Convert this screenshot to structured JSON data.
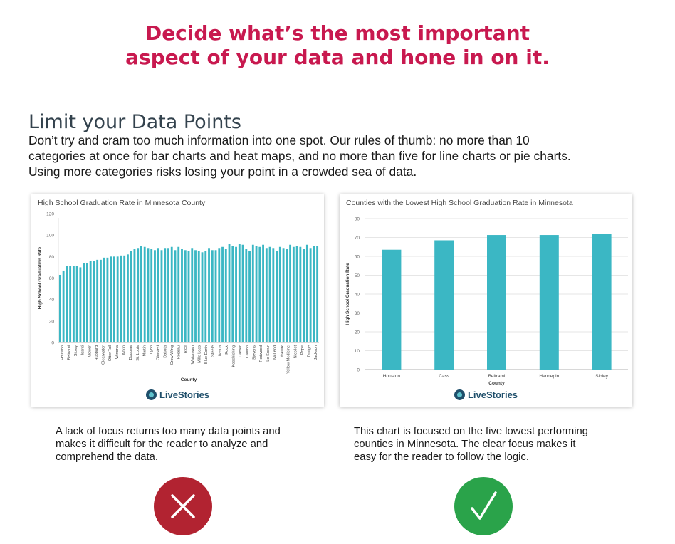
{
  "headline": {
    "line1": "Decide what’s the most important",
    "line2": "aspect of your data and hone in on it."
  },
  "section": {
    "title": "Limit your Data Points",
    "body_lines": [
      "Don’t try and cram too much information into one spot. Our rules of thumb: no more than 10",
      "categories at once for bar charts and heat maps, and no more than five for line charts or pie charts.",
      "Using more categories risks losing your point in a crowded sea of data."
    ]
  },
  "colors": {
    "accent": "#c8194f",
    "bar": "#3bb7c4",
    "bad": "#b22331",
    "good": "#2aa34a",
    "brand": "#1f4f6b"
  },
  "brand_name": "LiveStories",
  "chart_data": [
    {
      "type": "bar",
      "title": "High School Graduation Rate in Minnesota County",
      "xlabel": "County",
      "ylabel": "High School Graduation Rate",
      "ylim": [
        0,
        120
      ],
      "yticks": [
        0,
        20,
        40,
        60,
        80,
        100,
        120
      ],
      "grid": false,
      "category_labels_shown": [
        "Houston",
        "Beltrami",
        "Sibley",
        "Isanti",
        "Mower",
        "Hubbard",
        "Clearwater",
        "Otter Tail",
        "Winona",
        "Aitkin",
        "Douglas",
        "St. Louis",
        "Martin",
        "Lyon",
        "Olmsted",
        "Dakota",
        "Crow Wing",
        "Roseau",
        "Rice",
        "Watonwan",
        "Mille Lacs",
        "Blue Earth",
        "Steele",
        "Itasca",
        "Rock",
        "Koochiching",
        "Carver",
        "Carlton",
        "Stevens",
        "Redwood",
        "Le Sueur",
        "McLeod",
        "Murray",
        "Yellow Medicine",
        "Nicollet",
        "Pope",
        "Dodge",
        "Jackson"
      ],
      "values": [
        63,
        67,
        71,
        71,
        71,
        71,
        70,
        74,
        74,
        76,
        76,
        77,
        77,
        79,
        79,
        80,
        80,
        80,
        81,
        81,
        82,
        85,
        87,
        88,
        90,
        89,
        88,
        87,
        86,
        88,
        86,
        88,
        88,
        89,
        86,
        89,
        87,
        86,
        85,
        88,
        86,
        85,
        84,
        85,
        88,
        86,
        86,
        88,
        89,
        87,
        92,
        90,
        89,
        92,
        91,
        87,
        85,
        91,
        90,
        89,
        91,
        88,
        89,
        88,
        85,
        89,
        88,
        87,
        91,
        89,
        90,
        89,
        87,
        91,
        88,
        90,
        90
      ]
    },
    {
      "type": "bar",
      "title": "Counties with the Lowest High School Graduation Rate in Minnesota",
      "xlabel": "County",
      "ylabel": "High School Graduation Rate",
      "ylim": [
        0,
        80
      ],
      "yticks": [
        0,
        10,
        20,
        30,
        40,
        50,
        60,
        70,
        80
      ],
      "grid": true,
      "categories": [
        "Houston",
        "Cass",
        "Beltrami",
        "Hennepin",
        "Sibley"
      ],
      "values": [
        63.5,
        68.5,
        71.3,
        71.3,
        72.0
      ]
    }
  ],
  "captions": {
    "left": [
      "A lack of focus returns too many data points and",
      "makes it difficult for the reader to analyze and",
      "comprehend the data."
    ],
    "right": [
      "This chart is focused on the five lowest performing",
      "counties in Minnesota. The clear focus makes it",
      "easy for the reader to follow the logic."
    ]
  },
  "icons": {
    "bad": "x-mark-icon",
    "good": "check-mark-icon"
  }
}
